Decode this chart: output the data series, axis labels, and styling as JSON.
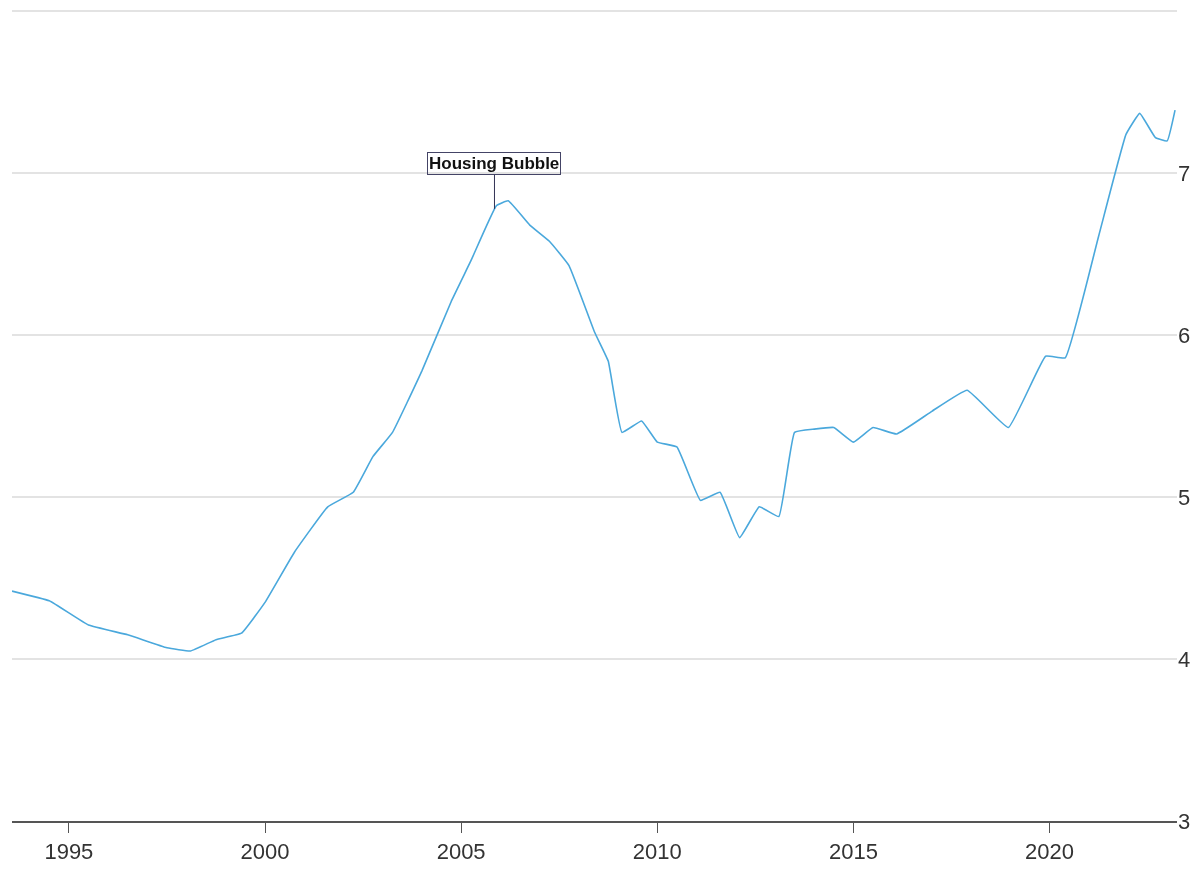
{
  "chart_data": {
    "type": "line",
    "x": [
      1993.55,
      1994.5,
      1995.5,
      1996.5,
      1997.5,
      1998.1,
      1998.75,
      1999.4,
      2000,
      2000.75,
      2001.6,
      2002.25,
      2002.75,
      2003.25,
      2004,
      2004.75,
      2005.25,
      2005.9,
      2006.2,
      2006.75,
      2007.25,
      2007.75,
      2008.4,
      2008.75,
      2009.1,
      2009.6,
      2010,
      2010.5,
      2011.1,
      2011.6,
      2012.1,
      2012.6,
      2013.1,
      2013.5,
      2014,
      2014.5,
      2015,
      2015.5,
      2016.1,
      2017,
      2017.9,
      2018.95,
      2019.9,
      2020.4,
      2021.25,
      2021.95,
      2022.3,
      2022.7,
      2023,
      2023.2
    ],
    "series": [
      {
        "color": "#4aa8dc",
        "values": [
          4.42,
          4.36,
          4.21,
          4.15,
          4.07,
          4.05,
          4.12,
          4.16,
          4.35,
          4.66,
          4.94,
          5.03,
          5.25,
          5.4,
          5.78,
          6.21,
          6.46,
          6.8,
          6.83,
          6.68,
          6.58,
          6.43,
          6.02,
          5.84,
          5.4,
          5.47,
          5.34,
          5.31,
          4.98,
          5.03,
          4.75,
          4.94,
          4.88,
          5.4,
          5.42,
          5.43,
          5.34,
          5.43,
          5.39,
          5.53,
          5.66,
          5.43,
          5.87,
          5.86,
          6.61,
          7.24,
          7.37,
          7.22,
          7.2,
          7.39
        ]
      }
    ],
    "xlim": [
      1993.55,
      2023.25
    ],
    "xticks": [
      1995,
      2000,
      2005,
      2010,
      2015,
      2020
    ],
    "ylim": [
      3,
      8.07
    ],
    "yticks": [
      3,
      4,
      5,
      6,
      7,
      {
        "value": 8,
        "label": null
      }
    ],
    "grid": "y",
    "legend": false,
    "annotations": [
      {
        "text": "Housing Bubble",
        "x": 2005.85,
        "y": 6.78
      }
    ]
  }
}
